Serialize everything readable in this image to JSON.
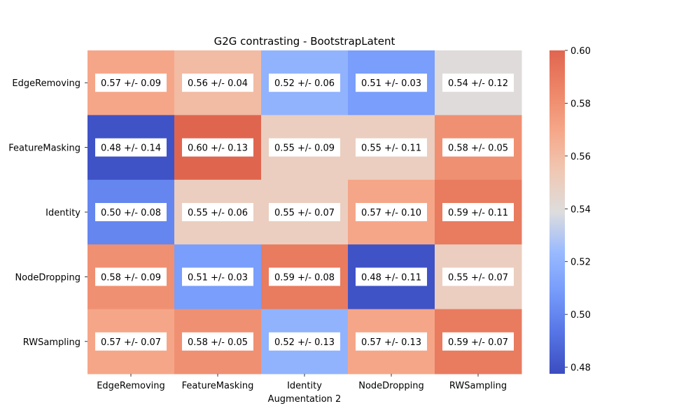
{
  "chart_data": {
    "type": "heatmap",
    "title": "G2G contrasting - BootstrapLatent",
    "xlabel": "Augmentation 2",
    "ylabel": "",
    "x_categories": [
      "EdgeRemoving",
      "FeatureMasking",
      "Identity",
      "NodeDropping",
      "RWSampling"
    ],
    "y_categories": [
      "EdgeRemoving",
      "FeatureMasking",
      "Identity",
      "NodeDropping",
      "RWSampling"
    ],
    "values": [
      [
        0.57,
        0.56,
        0.52,
        0.51,
        0.54
      ],
      [
        0.48,
        0.6,
        0.55,
        0.55,
        0.58
      ],
      [
        0.5,
        0.55,
        0.55,
        0.57,
        0.59
      ],
      [
        0.58,
        0.51,
        0.59,
        0.48,
        0.55
      ],
      [
        0.57,
        0.58,
        0.52,
        0.57,
        0.59
      ]
    ],
    "cell_labels": [
      [
        "0.57 +/- 0.09",
        "0.56 +/- 0.04",
        "0.52 +/- 0.06",
        "0.51 +/- 0.03",
        "0.54 +/- 0.12"
      ],
      [
        "0.48 +/- 0.14",
        "0.60 +/- 0.13",
        "0.55 +/- 0.09",
        "0.55 +/- 0.11",
        "0.58 +/- 0.05"
      ],
      [
        "0.50 +/- 0.08",
        "0.55 +/- 0.06",
        "0.55 +/- 0.07",
        "0.57 +/- 0.10",
        "0.59 +/- 0.11"
      ],
      [
        "0.58 +/- 0.09",
        "0.51 +/- 0.03",
        "0.59 +/- 0.08",
        "0.48 +/- 0.11",
        "0.55 +/- 0.07"
      ],
      [
        "0.57 +/- 0.07",
        "0.58 +/- 0.05",
        "0.52 +/- 0.13",
        "0.57 +/- 0.13",
        "0.59 +/- 0.07"
      ]
    ],
    "colorbar": {
      "min": 0.4775,
      "max": 0.6,
      "ticks": [
        "0.48",
        "0.50",
        "0.52",
        "0.54",
        "0.56",
        "0.58",
        "0.60"
      ],
      "colormap": "coolwarm",
      "low_color": "#3b4cc0",
      "mid_color": "#dddddd",
      "high_color": "#e0654f"
    },
    "grid": false
  }
}
